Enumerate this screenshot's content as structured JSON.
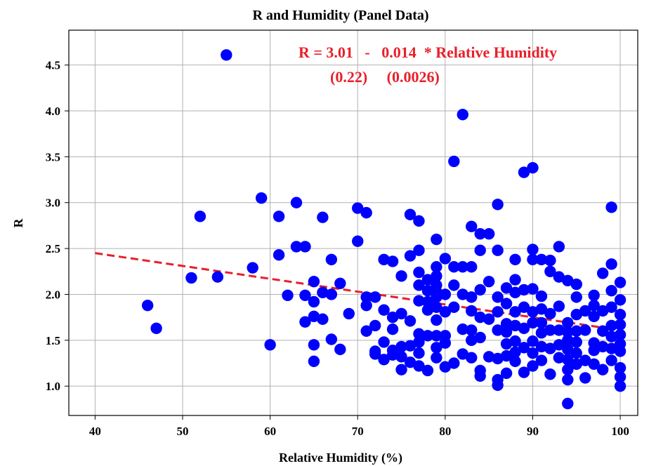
{
  "chart_data": {
    "type": "scatter",
    "title": "R and Humidity (Panel Data)",
    "xlabel": "Relative Humidity (%)",
    "ylabel": "R",
    "xlim": [
      37,
      102
    ],
    "ylim": [
      0.68,
      4.88
    ],
    "xticks": [
      40,
      50,
      60,
      70,
      80,
      90,
      100
    ],
    "yticks": [
      1.0,
      1.5,
      2.0,
      2.5,
      3.0,
      3.5,
      4.0,
      4.5
    ],
    "xtick_labels": [
      "40",
      "50",
      "60",
      "70",
      "80",
      "90",
      "100"
    ],
    "ytick_labels": [
      "1.0",
      "1.5",
      "2.0",
      "2.5",
      "3.0",
      "3.5",
      "4.0",
      "4.5"
    ],
    "grid": true,
    "point_color": "#0000ff",
    "fit_color": "#e8202a",
    "fit_line": {
      "intercept": 3.01,
      "slope": -0.014,
      "x_range": [
        40,
        99
      ]
    },
    "annotation": {
      "equation": "R = 3.01   -   0.014  * Relative Humidity",
      "std_errors": "(0.22)     (0.0026)"
    },
    "points": [
      [
        46,
        1.88
      ],
      [
        47,
        1.63
      ],
      [
        51,
        2.18
      ],
      [
        52,
        2.85
      ],
      [
        54,
        2.19
      ],
      [
        55,
        4.61
      ],
      [
        58,
        2.29
      ],
      [
        59,
        3.05
      ],
      [
        60,
        1.45
      ],
      [
        61,
        2.85
      ],
      [
        61,
        2.43
      ],
      [
        62,
        1.99
      ],
      [
        63,
        3.0
      ],
      [
        63,
        2.52
      ],
      [
        64,
        2.52
      ],
      [
        64,
        1.99
      ],
      [
        64,
        1.7
      ],
      [
        65,
        2.14
      ],
      [
        65,
        1.92
      ],
      [
        65,
        1.76
      ],
      [
        65,
        1.45
      ],
      [
        65,
        1.27
      ],
      [
        66,
        2.84
      ],
      [
        66,
        2.02
      ],
      [
        66,
        1.73
      ],
      [
        67,
        2.38
      ],
      [
        67,
        2.0
      ],
      [
        67,
        1.51
      ],
      [
        68,
        2.12
      ],
      [
        68,
        1.4
      ],
      [
        69,
        1.79
      ],
      [
        70,
        2.94
      ],
      [
        70,
        2.58
      ],
      [
        71,
        2.89
      ],
      [
        71,
        1.97
      ],
      [
        71,
        1.88
      ],
      [
        71,
        1.6
      ],
      [
        72,
        1.97
      ],
      [
        72,
        1.66
      ],
      [
        72,
        1.38
      ],
      [
        72,
        1.35
      ],
      [
        73,
        2.38
      ],
      [
        73,
        1.83
      ],
      [
        73,
        1.48
      ],
      [
        73,
        1.29
      ],
      [
        74,
        2.36
      ],
      [
        74,
        1.75
      ],
      [
        74,
        1.62
      ],
      [
        74,
        1.39
      ],
      [
        74,
        1.34
      ],
      [
        75,
        2.2
      ],
      [
        75,
        1.79
      ],
      [
        75,
        1.43
      ],
      [
        75,
        1.32
      ],
      [
        75,
        1.18
      ],
      [
        76,
        2.87
      ],
      [
        76,
        2.42
      ],
      [
        76,
        1.71
      ],
      [
        76,
        1.44
      ],
      [
        76,
        1.26
      ],
      [
        77,
        2.8
      ],
      [
        77,
        2.48
      ],
      [
        77,
        2.24
      ],
      [
        77,
        2.1
      ],
      [
        77,
        1.93
      ],
      [
        77,
        1.57
      ],
      [
        77,
        1.48
      ],
      [
        77,
        1.36
      ],
      [
        77,
        1.22
      ],
      [
        78,
        2.16
      ],
      [
        78,
        2.04
      ],
      [
        78,
        1.92
      ],
      [
        78,
        1.83
      ],
      [
        78,
        1.55
      ],
      [
        78,
        1.17
      ],
      [
        79,
        2.6
      ],
      [
        79,
        2.3
      ],
      [
        79,
        2.2
      ],
      [
        79,
        2.1
      ],
      [
        79,
        2.03
      ],
      [
        79,
        1.97
      ],
      [
        79,
        1.86
      ],
      [
        79,
        1.72
      ],
      [
        79,
        1.55
      ],
      [
        79,
        1.42
      ],
      [
        79,
        1.31
      ],
      [
        80,
        2.39
      ],
      [
        80,
        2.0
      ],
      [
        80,
        1.81
      ],
      [
        80,
        1.55
      ],
      [
        80,
        1.47
      ],
      [
        80,
        1.21
      ],
      [
        81,
        3.45
      ],
      [
        81,
        2.3
      ],
      [
        81,
        2.1
      ],
      [
        81,
        1.86
      ],
      [
        81,
        1.25
      ],
      [
        82,
        3.96
      ],
      [
        82,
        2.3
      ],
      [
        82,
        2.0
      ],
      [
        82,
        1.62
      ],
      [
        82,
        1.35
      ],
      [
        83,
        2.74
      ],
      [
        83,
        2.3
      ],
      [
        83,
        1.97
      ],
      [
        83,
        1.82
      ],
      [
        83,
        1.61
      ],
      [
        83,
        1.5
      ],
      [
        83,
        1.31
      ],
      [
        84,
        2.66
      ],
      [
        84,
        2.48
      ],
      [
        84,
        2.05
      ],
      [
        84,
        1.75
      ],
      [
        84,
        1.53
      ],
      [
        84,
        1.17
      ],
      [
        84,
        1.11
      ],
      [
        85,
        2.66
      ],
      [
        85,
        2.14
      ],
      [
        85,
        1.73
      ],
      [
        85,
        1.32
      ],
      [
        86,
        2.98
      ],
      [
        86,
        2.48
      ],
      [
        86,
        1.97
      ],
      [
        86,
        1.81
      ],
      [
        86,
        1.61
      ],
      [
        86,
        1.3
      ],
      [
        86,
        1.07
      ],
      [
        86,
        1.01
      ],
      [
        87,
        2.07
      ],
      [
        87,
        1.9
      ],
      [
        87,
        1.68
      ],
      [
        87,
        1.59
      ],
      [
        87,
        1.46
      ],
      [
        87,
        1.33
      ],
      [
        87,
        1.14
      ],
      [
        88,
        2.38
      ],
      [
        88,
        2.16
      ],
      [
        88,
        2.02
      ],
      [
        88,
        1.81
      ],
      [
        88,
        1.66
      ],
      [
        88,
        1.49
      ],
      [
        88,
        1.37
      ],
      [
        88,
        1.27
      ],
      [
        89,
        3.33
      ],
      [
        89,
        2.05
      ],
      [
        89,
        1.86
      ],
      [
        89,
        1.63
      ],
      [
        89,
        1.42
      ],
      [
        89,
        1.15
      ],
      [
        90,
        3.38
      ],
      [
        90,
        2.49
      ],
      [
        90,
        2.38
      ],
      [
        90,
        2.06
      ],
      [
        90,
        1.81
      ],
      [
        90,
        1.69
      ],
      [
        90,
        1.49
      ],
      [
        90,
        1.36
      ],
      [
        90,
        1.22
      ],
      [
        91,
        2.38
      ],
      [
        91,
        1.98
      ],
      [
        91,
        1.84
      ],
      [
        91,
        1.69
      ],
      [
        91,
        1.58
      ],
      [
        91,
        1.43
      ],
      [
        91,
        1.28
      ],
      [
        92,
        2.37
      ],
      [
        92,
        2.25
      ],
      [
        92,
        1.79
      ],
      [
        92,
        1.61
      ],
      [
        92,
        1.41
      ],
      [
        92,
        1.13
      ],
      [
        93,
        2.52
      ],
      [
        93,
        2.19
      ],
      [
        93,
        1.87
      ],
      [
        93,
        1.61
      ],
      [
        93,
        1.45
      ],
      [
        93,
        1.31
      ],
      [
        94,
        2.15
      ],
      [
        94,
        1.69
      ],
      [
        94,
        1.59
      ],
      [
        94,
        1.5
      ],
      [
        94,
        1.4
      ],
      [
        94,
        1.29
      ],
      [
        94,
        1.18
      ],
      [
        94,
        1.07
      ],
      [
        94,
        0.81
      ],
      [
        95,
        2.11
      ],
      [
        95,
        1.97
      ],
      [
        95,
        1.78
      ],
      [
        95,
        1.6
      ],
      [
        95,
        1.48
      ],
      [
        95,
        1.36
      ],
      [
        95,
        1.24
      ],
      [
        96,
        1.82
      ],
      [
        96,
        1.61
      ],
      [
        96,
        1.28
      ],
      [
        96,
        1.09
      ],
      [
        97,
        1.99
      ],
      [
        97,
        1.88
      ],
      [
        97,
        1.76
      ],
      [
        97,
        1.47
      ],
      [
        97,
        1.39
      ],
      [
        97,
        1.24
      ],
      [
        98,
        2.23
      ],
      [
        98,
        1.82
      ],
      [
        98,
        1.6
      ],
      [
        98,
        1.43
      ],
      [
        98,
        1.18
      ],
      [
        99,
        2.95
      ],
      [
        99,
        2.33
      ],
      [
        99,
        2.04
      ],
      [
        99,
        1.86
      ],
      [
        99,
        1.66
      ],
      [
        99,
        1.54
      ],
      [
        99,
        1.41
      ],
      [
        99,
        1.28
      ],
      [
        100,
        2.13
      ],
      [
        100,
        1.94
      ],
      [
        100,
        1.78
      ],
      [
        100,
        1.67
      ],
      [
        100,
        1.56
      ],
      [
        100,
        1.46
      ],
      [
        100,
        1.38
      ],
      [
        100,
        1.2
      ],
      [
        100,
        1.1
      ],
      [
        100,
        1.0
      ]
    ]
  }
}
